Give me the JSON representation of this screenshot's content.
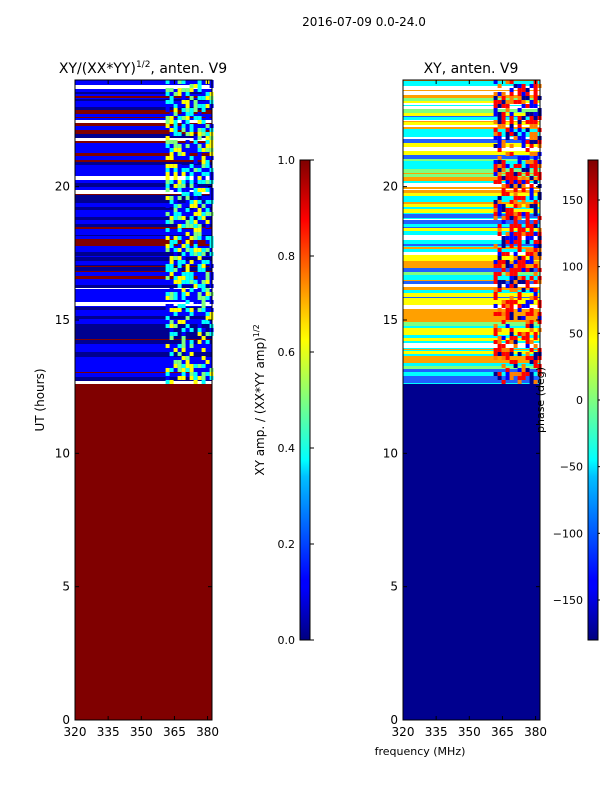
{
  "figure": {
    "suptitle": "2016-07-09 0.0-24.0",
    "xlabel_shared": "frequency (MHz)"
  },
  "colors": {
    "dark_red": "#800000",
    "navy": "#00008f",
    "blue": "#0000ff",
    "cyan": "#00ffff",
    "yellow": "#ffff00",
    "red": "#ff0000",
    "axis": "#000000",
    "background": "#ffffff"
  },
  "chart_data": [
    {
      "type": "heatmap",
      "title_main": "XY/(XX*YY)",
      "title_exp": "1/2",
      "title_suffix": ", anten. V9",
      "xlabel": "",
      "ylabel": "UT (hours)",
      "xlim": [
        320,
        382
      ],
      "ylim": [
        0,
        24
      ],
      "xticks": [
        320,
        335,
        350,
        365,
        380
      ],
      "yticks": [
        0,
        5,
        10,
        15,
        20
      ],
      "background_value": 1.0,
      "active_band_hours": [
        12.6,
        24.0
      ],
      "rfi_band_mhz": [
        361,
        383
      ],
      "colorbar": {
        "label_main": "XY amp. / (XX*YY amp)",
        "label_exp": "1/2",
        "range": [
          0.0,
          1.0
        ],
        "ticks": [
          "0.0",
          "0.2",
          "0.4",
          "0.6",
          "0.8",
          "1.0"
        ]
      }
    },
    {
      "type": "heatmap",
      "title_main": "XY, anten. V9",
      "xlabel": "frequency (MHz)",
      "ylabel": "",
      "xlim": [
        320,
        382
      ],
      "ylim": [
        0,
        24
      ],
      "xticks": [
        320,
        335,
        350,
        365,
        380
      ],
      "yticks": [
        0,
        5,
        10,
        15,
        20
      ],
      "background_value": -180,
      "active_band_hours": [
        12.6,
        24.0
      ],
      "rfi_band_mhz": [
        361,
        383
      ],
      "colorbar": {
        "label_main": "phase (deg)",
        "range": [
          -180,
          180
        ],
        "ticks": [
          "-150",
          "-100",
          "-50",
          "0",
          "50",
          "100",
          "150"
        ]
      }
    }
  ]
}
